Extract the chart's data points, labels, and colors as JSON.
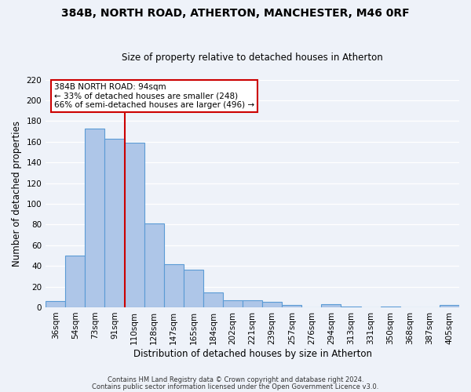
{
  "title": "384B, NORTH ROAD, ATHERTON, MANCHESTER, M46 0RF",
  "subtitle": "Size of property relative to detached houses in Atherton",
  "xlabel": "Distribution of detached houses by size in Atherton",
  "ylabel": "Number of detached properties",
  "bar_labels": [
    "36sqm",
    "54sqm",
    "73sqm",
    "91sqm",
    "110sqm",
    "128sqm",
    "147sqm",
    "165sqm",
    "184sqm",
    "202sqm",
    "221sqm",
    "239sqm",
    "257sqm",
    "276sqm",
    "294sqm",
    "313sqm",
    "331sqm",
    "350sqm",
    "368sqm",
    "387sqm",
    "405sqm"
  ],
  "bar_values": [
    6,
    50,
    173,
    163,
    159,
    81,
    42,
    36,
    14,
    7,
    7,
    5,
    2,
    0,
    3,
    1,
    0,
    1,
    0,
    0,
    2
  ],
  "bar_color": "#aec6e8",
  "bar_edge_color": "#5b9bd5",
  "annotation_line1": "384B NORTH ROAD: 94sqm",
  "annotation_line2": "← 33% of detached houses are smaller (248)",
  "annotation_line3": "66% of semi-detached houses are larger (496) →",
  "vline_color": "#cc0000",
  "annotation_box_color": "#cc0000",
  "ylim": [
    0,
    220
  ],
  "yticks": [
    0,
    20,
    40,
    60,
    80,
    100,
    120,
    140,
    160,
    180,
    200,
    220
  ],
  "footer_line1": "Contains HM Land Registry data © Crown copyright and database right 2024.",
  "footer_line2": "Contains public sector information licensed under the Open Government Licence v3.0.",
  "bg_color": "#eef2f9",
  "grid_color": "#ffffff",
  "bar_width": 1.0,
  "vline_bar_index": 3,
  "title_fontsize": 10,
  "subtitle_fontsize": 8.5,
  "xlabel_fontsize": 8.5,
  "ylabel_fontsize": 8.5,
  "tick_fontsize": 7.5,
  "annot_fontsize": 7.5,
  "footer_fontsize": 6.0
}
